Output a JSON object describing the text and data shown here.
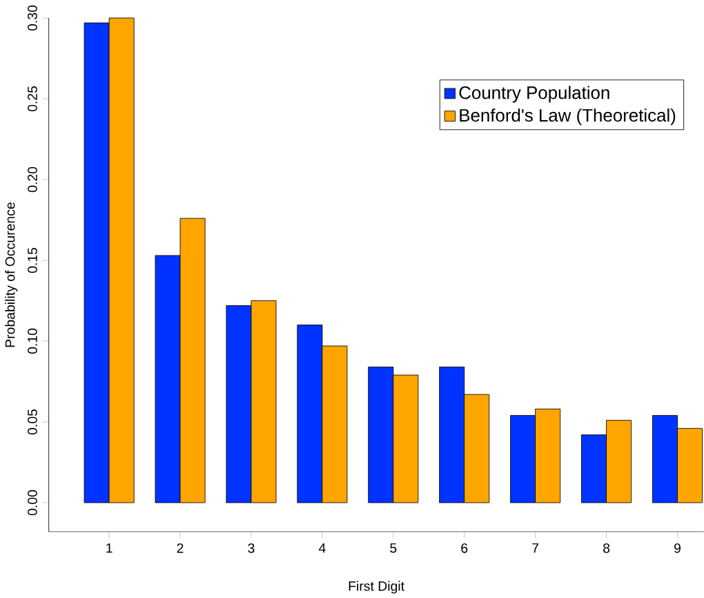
{
  "chart_data": {
    "type": "bar",
    "xlabel": "First Digit",
    "ylabel": "Probability of Occurence",
    "categories": [
      "1",
      "2",
      "3",
      "4",
      "5",
      "6",
      "7",
      "8",
      "9"
    ],
    "series": [
      {
        "name": "Country Population",
        "color": "#0033ff",
        "values": [
          0.297,
          0.153,
          0.122,
          0.11,
          0.084,
          0.084,
          0.054,
          0.042,
          0.054
        ]
      },
      {
        "name": "Benford's Law (Theoretical)",
        "color": "#ffa500",
        "values": [
          0.3,
          0.176,
          0.125,
          0.097,
          0.079,
          0.067,
          0.058,
          0.051,
          0.046
        ]
      }
    ],
    "ylim": [
      0,
      0.3
    ],
    "yticks": [
      {
        "value": 0,
        "label": "0.00"
      },
      {
        "value": 0.05,
        "label": "0.05"
      },
      {
        "value": 0.1,
        "label": "0.10"
      },
      {
        "value": 0.15,
        "label": "0.15"
      },
      {
        "value": 0.2,
        "label": "0.20"
      },
      {
        "value": 0.25,
        "label": "0.25"
      },
      {
        "value": 0.3,
        "label": "0.30"
      }
    ],
    "legend": "top right",
    "grid": false
  }
}
